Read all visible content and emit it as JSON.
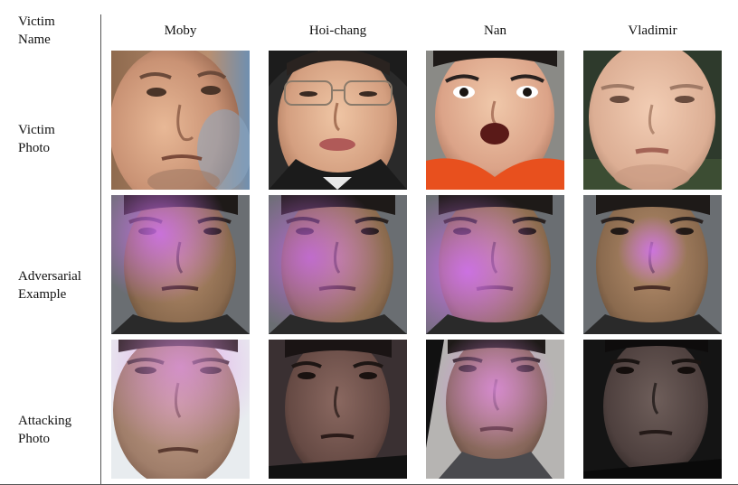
{
  "row_labels": {
    "victim_name": "Victim\nName",
    "victim_photo": "Victim\nPhoto",
    "adversarial_example": "Adversarial\nExample",
    "attacking_photo": "Attacking\nPhoto"
  },
  "columns": [
    "Moby",
    "Hoi-chang",
    "Nan",
    "Vladimir"
  ]
}
